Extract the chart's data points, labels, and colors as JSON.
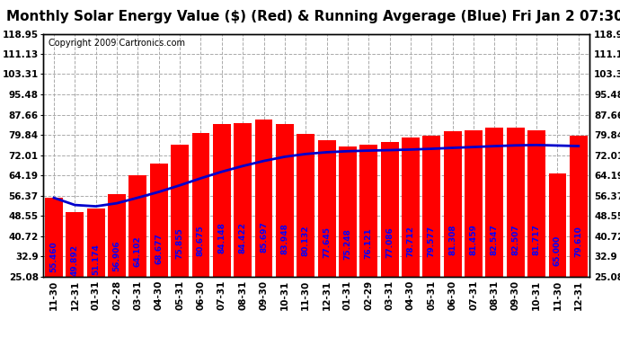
{
  "title": "Monthly Solar Energy Value ($) (Red) & Running Avgerage (Blue) Fri Jan 2 07:30",
  "copyright": "Copyright 2009 Cartronics.com",
  "bar_color": "#ff0000",
  "line_color": "#0000cc",
  "background_color": "#ffffff",
  "plot_bg_color": "#ffffff",
  "grid_color": "#aaaaaa",
  "text_color_bar": "#0000ff",
  "categories": [
    "11-30",
    "12-31",
    "01-31",
    "02-28",
    "03-31",
    "04-30",
    "05-31",
    "06-30",
    "07-31",
    "08-31",
    "09-30",
    "10-31",
    "11-30",
    "12-31",
    "01-31",
    "02-29",
    "03-31",
    "04-30",
    "05-31",
    "06-30",
    "07-31",
    "08-31",
    "09-30",
    "10-31",
    "11-30",
    "12-31"
  ],
  "bar_values": [
    55.46,
    49.892,
    51.174,
    56.906,
    64.102,
    68.677,
    75.855,
    80.675,
    84.148,
    84.422,
    85.697,
    83.948,
    80.132,
    77.645,
    75.248,
    76.121,
    77.086,
    78.712,
    79.577,
    81.308,
    81.459,
    82.547,
    82.507,
    81.717,
    65.0,
    79.61
  ],
  "bar_labels": [
    "55.460",
    "49.892",
    "51.174",
    "56.906",
    "64.102",
    "68.677",
    "75.855",
    "80.675",
    "84.148",
    "84.422",
    "85.697",
    "83.948",
    "80.132",
    "77.645",
    "75.248",
    "76.121",
    "77.086",
    "78.712",
    "79.577",
    "81.308",
    "81.459",
    "82.547",
    "82.507",
    "81.717",
    "65.000",
    "79.610"
  ],
  "running_avg": [
    55.46,
    52.68,
    52.18,
    53.36,
    55.51,
    57.74,
    60.3,
    63.02,
    65.55,
    67.76,
    69.72,
    71.34,
    72.41,
    73.09,
    73.49,
    73.73,
    73.91,
    74.13,
    74.43,
    74.79,
    75.11,
    75.46,
    75.74,
    75.89,
    75.68,
    75.48
  ],
  "ymin": 25.08,
  "ymax": 118.95,
  "yticks": [
    25.08,
    32.9,
    40.72,
    48.55,
    56.37,
    64.19,
    72.01,
    79.84,
    87.66,
    95.48,
    103.31,
    111.13,
    118.95
  ],
  "title_fontsize": 11,
  "copyright_fontsize": 7,
  "bar_label_fontsize": 6.5,
  "tick_fontsize": 7.5,
  "figsize": [
    6.9,
    3.75
  ],
  "dpi": 100
}
